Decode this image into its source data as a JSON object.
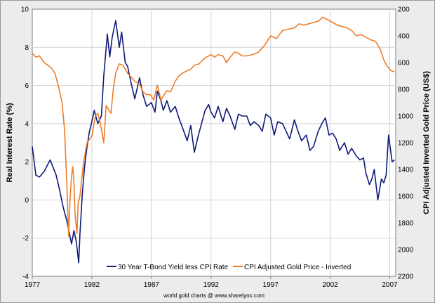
{
  "chart_data": {
    "type": "line",
    "title": "",
    "xlabel": "",
    "ylabel": "Real Interest Rate (%)",
    "y2label": "CPI Adjusted Inverted Gold Price (US$)",
    "xlim": [
      1977,
      2007.5
    ],
    "ylim": [
      -4,
      10
    ],
    "y2lim": [
      2200,
      200
    ],
    "y2_inverted": true,
    "grid": true,
    "legend_position": "bottom-center",
    "x_ticks": [
      "1977",
      "1982",
      "1987",
      "1992",
      "1997",
      "2002",
      "2007"
    ],
    "y_ticks": [
      "-4",
      "-2",
      "0",
      "2",
      "4",
      "6",
      "8",
      "10"
    ],
    "y2_ticks": [
      "2200",
      "2000",
      "1800",
      "1600",
      "1400",
      "1200",
      "1000",
      "800",
      "600",
      "400",
      "200"
    ],
    "footer": "world gold charts @ www.sharelynx.com",
    "series": [
      {
        "name": "30 Year T-Bond Yield less CPI Rate",
        "axis": "left",
        "color": "#0d1a7a",
        "x": [
          1977.0,
          1977.3,
          1977.6,
          1978.0,
          1978.5,
          1979.0,
          1979.3,
          1979.6,
          1979.9,
          1980.1,
          1980.3,
          1980.5,
          1980.7,
          1980.9,
          1981.0,
          1981.2,
          1981.4,
          1981.6,
          1981.8,
          1982.0,
          1982.2,
          1982.5,
          1982.8,
          1983.0,
          1983.3,
          1983.5,
          1983.7,
          1984.0,
          1984.3,
          1984.5,
          1984.8,
          1985.0,
          1985.3,
          1985.6,
          1986.0,
          1986.3,
          1986.6,
          1987.0,
          1987.3,
          1987.5,
          1987.8,
          1988.0,
          1988.3,
          1988.6,
          1989.0,
          1989.3,
          1989.6,
          1990.0,
          1990.3,
          1990.6,
          1990.9,
          1991.2,
          1991.5,
          1991.8,
          1992.0,
          1992.3,
          1992.6,
          1993.0,
          1993.3,
          1993.6,
          1994.0,
          1994.3,
          1994.6,
          1995.0,
          1995.3,
          1995.6,
          1996.0,
          1996.3,
          1996.6,
          1997.0,
          1997.3,
          1997.6,
          1998.0,
          1998.3,
          1998.6,
          1999.0,
          1999.3,
          1999.6,
          2000.0,
          2000.3,
          2000.6,
          2001.0,
          2001.3,
          2001.6,
          2001.9,
          2002.2,
          2002.5,
          2002.8,
          2003.2,
          2003.5,
          2003.8,
          2004.2,
          2004.5,
          2004.8,
          2005.0,
          2005.3,
          2005.5,
          2005.7,
          2006.0,
          2006.3,
          2006.5,
          2006.7,
          2006.9,
          2007.2,
          2007.4
        ],
        "values": [
          2.8,
          1.3,
          1.2,
          1.5,
          2.1,
          1.3,
          0.5,
          -0.4,
          -1.1,
          -1.7,
          -2.3,
          -1.6,
          -2.2,
          -3.3,
          -1.8,
          0.3,
          1.8,
          2.8,
          3.6,
          4.1,
          4.7,
          4.0,
          4.4,
          6.5,
          8.7,
          7.5,
          8.5,
          9.4,
          8.0,
          8.8,
          7.2,
          7.0,
          6.1,
          5.3,
          6.4,
          5.5,
          4.9,
          5.1,
          4.6,
          5.7,
          5.2,
          4.7,
          5.2,
          4.6,
          4.9,
          4.3,
          3.8,
          3.1,
          3.9,
          2.5,
          3.3,
          4.0,
          4.7,
          5.0,
          4.6,
          4.3,
          4.9,
          4.1,
          4.8,
          4.4,
          3.7,
          4.5,
          4.4,
          4.4,
          3.9,
          4.1,
          3.9,
          3.6,
          4.5,
          4.3,
          3.4,
          4.1,
          4.0,
          3.6,
          3.2,
          4.2,
          3.6,
          3.1,
          3.4,
          2.6,
          2.8,
          3.6,
          4.0,
          4.3,
          3.4,
          3.5,
          3.2,
          2.6,
          3.0,
          2.4,
          2.7,
          2.3,
          2.1,
          2.2,
          1.4,
          0.8,
          1.1,
          1.6,
          0.0,
          1.1,
          0.9,
          1.3,
          3.4,
          2.0,
          2.1
        ]
      },
      {
        "name": "CPI Adjusted Gold Price - Inverted",
        "axis": "right",
        "color": "#f07c28",
        "x": [
          1977.0,
          1977.3,
          1977.6,
          1978.0,
          1978.3,
          1978.6,
          1978.9,
          1979.2,
          1979.5,
          1979.7,
          1979.9,
          1980.0,
          1980.05,
          1980.15,
          1980.3,
          1980.4,
          1980.5,
          1980.6,
          1980.75,
          1980.85,
          1981.0,
          1981.3,
          1981.6,
          1982.0,
          1982.3,
          1982.5,
          1982.7,
          1983.0,
          1983.2,
          1983.4,
          1983.6,
          1983.8,
          1984.0,
          1984.3,
          1984.6,
          1985.0,
          1985.3,
          1985.6,
          1986.0,
          1986.3,
          1986.6,
          1986.9,
          1987.2,
          1987.5,
          1987.8,
          1988.0,
          1988.3,
          1988.6,
          1989.0,
          1989.3,
          1989.6,
          1990.0,
          1990.3,
          1990.6,
          1991.0,
          1991.3,
          1991.6,
          1992.0,
          1992.3,
          1992.6,
          1993.0,
          1993.3,
          1993.6,
          1994.0,
          1994.3,
          1994.6,
          1995.0,
          1995.5,
          1996.0,
          1996.5,
          1997.0,
          1997.5,
          1998.0,
          1998.5,
          1999.0,
          1999.4,
          1999.8,
          2000.2,
          2000.6,
          2001.0,
          2001.4,
          2001.8,
          2002.2,
          2002.6,
          2003.0,
          2003.4,
          2003.8,
          2004.2,
          2004.6,
          2005.0,
          2005.4,
          2005.8,
          2006.0,
          2006.2,
          2006.5,
          2006.8,
          2007.1,
          2007.4
        ],
        "values": [
          530,
          560,
          550,
          600,
          620,
          640,
          680,
          780,
          900,
          1100,
          1500,
          1780,
          1900,
          1650,
          1450,
          1380,
          1500,
          1750,
          1880,
          1650,
          1600,
          1350,
          1200,
          1150,
          1000,
          980,
          1050,
          1200,
          920,
          950,
          980,
          800,
          680,
          610,
          620,
          680,
          710,
          740,
          760,
          820,
          840,
          840,
          880,
          770,
          880,
          850,
          810,
          820,
          740,
          700,
          680,
          660,
          650,
          620,
          610,
          580,
          560,
          540,
          560,
          540,
          550,
          600,
          560,
          520,
          530,
          550,
          550,
          540,
          520,
          470,
          400,
          420,
          360,
          350,
          340,
          310,
          320,
          310,
          300,
          290,
          260,
          280,
          300,
          320,
          330,
          340,
          360,
          400,
          390,
          410,
          430,
          440,
          470,
          500,
          580,
          630,
          660,
          670
        ]
      }
    ]
  }
}
